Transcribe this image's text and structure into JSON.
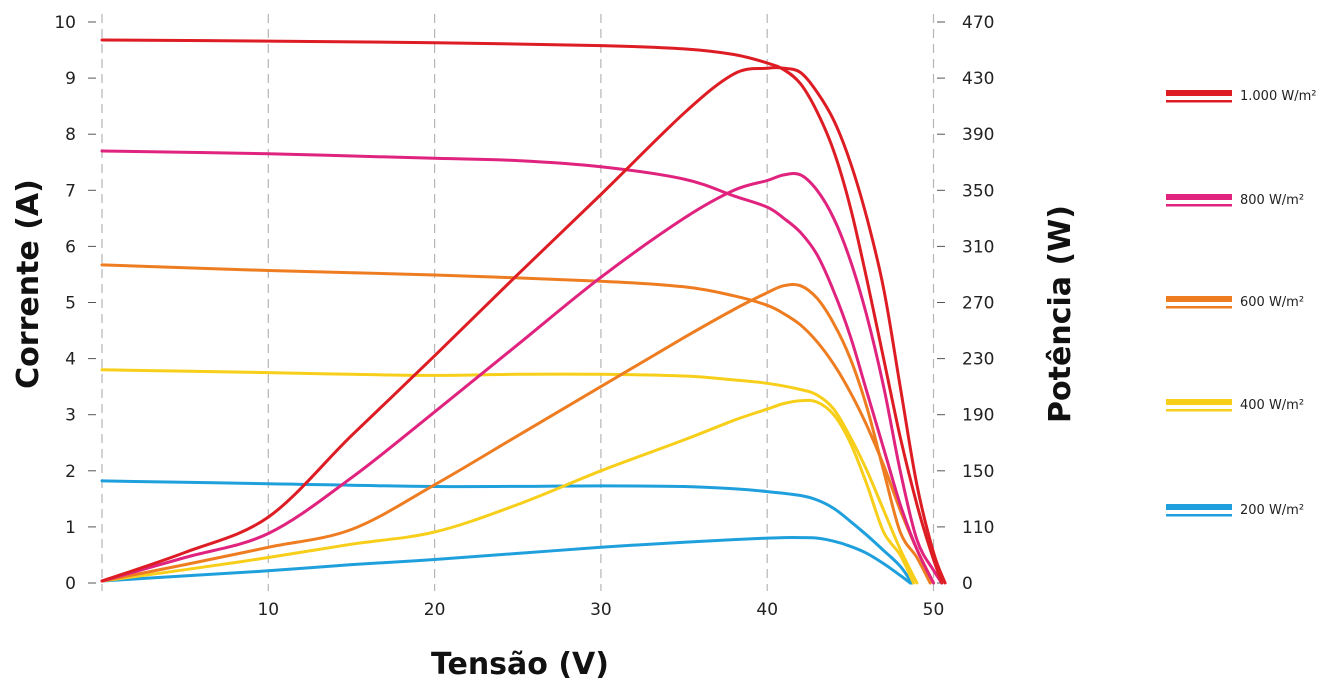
{
  "chart_data": {
    "type": "line",
    "xlabel": "Tensão (V)",
    "ylabel": "Corrente (A)",
    "y2label": "Potência (W)",
    "xlim": [
      0,
      51
    ],
    "ylim": [
      0,
      10
    ],
    "y2lim": [
      0,
      470
    ],
    "grid": "vertical-dashed",
    "legend_position": "right",
    "xticks": [
      {
        "v": 10,
        "label": "10"
      },
      {
        "v": 20,
        "label": "20"
      },
      {
        "v": 30,
        "label": "30"
      },
      {
        "v": 40,
        "label": "40"
      },
      {
        "v": 50,
        "label": "50"
      }
    ],
    "yticks": [
      {
        "v": 0,
        "label": "0"
      },
      {
        "v": 1,
        "label": "1"
      },
      {
        "v": 2,
        "label": "2"
      },
      {
        "v": 3,
        "label": "3"
      },
      {
        "v": 4,
        "label": "4"
      },
      {
        "v": 5,
        "label": "5"
      },
      {
        "v": 6,
        "label": "6"
      },
      {
        "v": 7,
        "label": "7"
      },
      {
        "v": 8,
        "label": "8"
      },
      {
        "v": 9,
        "label": "9"
      },
      {
        "v": 10,
        "label": "10"
      }
    ],
    "y2ticks": [
      {
        "v": 0,
        "label": "0"
      },
      {
        "v": 110,
        "label": "110"
      },
      {
        "v": 150,
        "label": "150"
      },
      {
        "v": 190,
        "label": "190"
      },
      {
        "v": 230,
        "label": "230"
      },
      {
        "v": 270,
        "label": "270"
      },
      {
        "v": 310,
        "label": "310"
      },
      {
        "v": 350,
        "label": "350"
      },
      {
        "v": 390,
        "label": "390"
      },
      {
        "v": 430,
        "label": "430"
      },
      {
        "v": 470,
        "label": "470"
      }
    ],
    "series": [
      {
        "name": "1.000 W/m²",
        "color": "#dd1c24",
        "current": [
          [
            0,
            9.68
          ],
          [
            10,
            9.66
          ],
          [
            20,
            9.63
          ],
          [
            30,
            9.58
          ],
          [
            35,
            9.52
          ],
          [
            38,
            9.42
          ],
          [
            40,
            9.27
          ],
          [
            41,
            9.15
          ],
          [
            42,
            8.9
          ],
          [
            43,
            8.4
          ],
          [
            44,
            7.7
          ],
          [
            45,
            6.7
          ],
          [
            46,
            5.4
          ],
          [
            47,
            4.0
          ],
          [
            48,
            2.6
          ],
          [
            49,
            1.4
          ],
          [
            49.8,
            0.6
          ],
          [
            50.5,
            0
          ]
        ],
        "power": [
          [
            0,
            4
          ],
          [
            5,
            60
          ],
          [
            10,
            117
          ],
          [
            15,
            175
          ],
          [
            20,
            232
          ],
          [
            25,
            290
          ],
          [
            30,
            347
          ],
          [
            35,
            405
          ],
          [
            38,
            433
          ],
          [
            40,
            437
          ],
          [
            41,
            437
          ],
          [
            42,
            434
          ],
          [
            43,
            420
          ],
          [
            44,
            400
          ],
          [
            45,
            370
          ],
          [
            46,
            330
          ],
          [
            47,
            280
          ],
          [
            48,
            210
          ],
          [
            49,
            140
          ],
          [
            50,
            60
          ],
          [
            50.7,
            0
          ]
        ]
      },
      {
        "name": "800 W/m²",
        "color": "#e0237f",
        "current": [
          [
            0,
            7.7
          ],
          [
            10,
            7.65
          ],
          [
            20,
            7.57
          ],
          [
            25,
            7.53
          ],
          [
            30,
            7.42
          ],
          [
            35,
            7.2
          ],
          [
            38,
            6.9
          ],
          [
            40,
            6.7
          ],
          [
            41,
            6.5
          ],
          [
            42,
            6.25
          ],
          [
            43,
            5.85
          ],
          [
            44,
            5.2
          ],
          [
            45,
            4.4
          ],
          [
            46,
            3.4
          ],
          [
            47,
            2.4
          ],
          [
            48,
            1.4
          ],
          [
            49,
            0.6
          ],
          [
            50,
            0
          ]
        ],
        "power": [
          [
            0,
            4
          ],
          [
            5,
            50
          ],
          [
            10,
            97
          ],
          [
            15,
            145
          ],
          [
            20,
            192
          ],
          [
            25,
            240
          ],
          [
            30,
            288
          ],
          [
            35,
            330
          ],
          [
            38,
            350
          ],
          [
            40,
            357
          ],
          [
            41,
            361
          ],
          [
            42,
            361
          ],
          [
            43,
            350
          ],
          [
            44,
            330
          ],
          [
            45,
            300
          ],
          [
            46,
            260
          ],
          [
            47,
            210
          ],
          [
            48,
            150
          ],
          [
            49,
            85
          ],
          [
            50,
            25
          ],
          [
            50.5,
            0
          ]
        ]
      },
      {
        "name": "600 W/m²",
        "color": "#ee7d22",
        "current": [
          [
            0,
            5.67
          ],
          [
            10,
            5.57
          ],
          [
            20,
            5.49
          ],
          [
            30,
            5.38
          ],
          [
            35,
            5.28
          ],
          [
            38,
            5.12
          ],
          [
            40,
            4.95
          ],
          [
            41,
            4.8
          ],
          [
            42,
            4.6
          ],
          [
            43,
            4.3
          ],
          [
            44,
            3.9
          ],
          [
            45,
            3.4
          ],
          [
            46,
            2.8
          ],
          [
            47,
            2.1
          ],
          [
            48,
            1.3
          ],
          [
            49,
            0.6
          ],
          [
            50,
            0
          ]
        ],
        "power": [
          [
            0,
            4
          ],
          [
            5,
            36
          ],
          [
            10,
            70
          ],
          [
            15,
            105
          ],
          [
            20,
            140
          ],
          [
            25,
            175
          ],
          [
            30,
            210
          ],
          [
            35,
            245
          ],
          [
            38,
            265
          ],
          [
            40,
            277
          ],
          [
            41,
            282
          ],
          [
            42,
            282
          ],
          [
            43,
            273
          ],
          [
            44,
            255
          ],
          [
            45,
            230
          ],
          [
            46,
            195
          ],
          [
            47,
            150
          ],
          [
            48,
            100
          ],
          [
            49,
            50
          ],
          [
            49.8,
            0
          ]
        ]
      },
      {
        "name": "400 W/m²",
        "color": "#f7cf1b",
        "current": [
          [
            0,
            3.8
          ],
          [
            10,
            3.75
          ],
          [
            15,
            3.72
          ],
          [
            20,
            3.7
          ],
          [
            25,
            3.72
          ],
          [
            30,
            3.72
          ],
          [
            35,
            3.69
          ],
          [
            38,
            3.62
          ],
          [
            40,
            3.56
          ],
          [
            42,
            3.45
          ],
          [
            43,
            3.35
          ],
          [
            44,
            3.1
          ],
          [
            45,
            2.6
          ],
          [
            46,
            2.0
          ],
          [
            47,
            1.3
          ],
          [
            48,
            0.6
          ],
          [
            49,
            0
          ]
        ],
        "power": [
          [
            0,
            4
          ],
          [
            5,
            26
          ],
          [
            10,
            50
          ],
          [
            15,
            76
          ],
          [
            20,
            100
          ],
          [
            25,
            126
          ],
          [
            30,
            150
          ],
          [
            35,
            172
          ],
          [
            38,
            186
          ],
          [
            40,
            194
          ],
          [
            41,
            198
          ],
          [
            42,
            200
          ],
          [
            43,
            199
          ],
          [
            44,
            190
          ],
          [
            45,
            170
          ],
          [
            46,
            140
          ],
          [
            47,
            100
          ],
          [
            48,
            55
          ],
          [
            48.8,
            0
          ]
        ]
      },
      {
        "name": "200 W/m²",
        "color": "#1fa0dd",
        "current": [
          [
            0,
            1.82
          ],
          [
            10,
            1.77
          ],
          [
            20,
            1.72
          ],
          [
            30,
            1.73
          ],
          [
            35,
            1.72
          ],
          [
            38,
            1.68
          ],
          [
            40,
            1.63
          ],
          [
            42,
            1.56
          ],
          [
            43,
            1.48
          ],
          [
            44,
            1.33
          ],
          [
            45,
            1.1
          ],
          [
            46,
            0.85
          ],
          [
            47,
            0.58
          ],
          [
            48,
            0.3
          ],
          [
            48.7,
            0
          ]
        ],
        "power": [
          [
            0,
            4
          ],
          [
            5,
            14
          ],
          [
            10,
            24
          ],
          [
            15,
            36
          ],
          [
            20,
            46
          ],
          [
            25,
            58
          ],
          [
            30,
            70
          ],
          [
            35,
            80
          ],
          [
            38,
            85
          ],
          [
            40,
            88
          ],
          [
            41,
            89
          ],
          [
            42,
            89
          ],
          [
            43,
            88
          ],
          [
            44,
            82
          ],
          [
            45,
            72
          ],
          [
            46,
            58
          ],
          [
            47,
            38
          ],
          [
            48,
            15
          ],
          [
            48.6,
            0
          ]
        ]
      }
    ]
  }
}
